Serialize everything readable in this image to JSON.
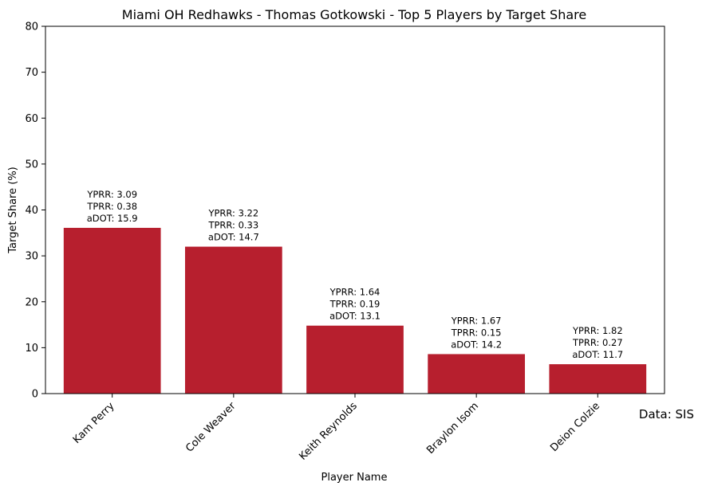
{
  "chart_data": {
    "type": "bar",
    "title": "Miami OH Redhawks - Thomas Gotkowski - Top 5 Players by Target Share",
    "xlabel": "Player Name",
    "ylabel": "Target Share (%)",
    "ylim": [
      0,
      80
    ],
    "yticks": [
      "0",
      "10",
      "20",
      "30",
      "40",
      "50",
      "60",
      "70",
      "80"
    ],
    "categories": [
      "Kam Perry",
      "Cole Weaver",
      "Keith Reynolds",
      "Braylon Isom",
      "Deion Colzie"
    ],
    "values": [
      36.1,
      32.0,
      14.8,
      8.6,
      6.4
    ],
    "bar_labels": [
      [
        "YPRR: 3.09",
        "TPRR: 0.38",
        "aDOT: 15.9"
      ],
      [
        "YPRR: 3.22",
        "TPRR: 0.33",
        "aDOT: 14.7"
      ],
      [
        "YPRR: 1.64",
        "TPRR: 0.19",
        "aDOT: 13.1"
      ],
      [
        "YPRR: 1.67",
        "TPRR: 0.15",
        "aDOT: 14.2"
      ],
      [
        "YPRR: 1.82",
        "TPRR: 0.27",
        "aDOT: 11.7"
      ]
    ],
    "bar_color": "#b71f2e",
    "grid": false,
    "legend": "none"
  },
  "source_note": "Data: SIS"
}
